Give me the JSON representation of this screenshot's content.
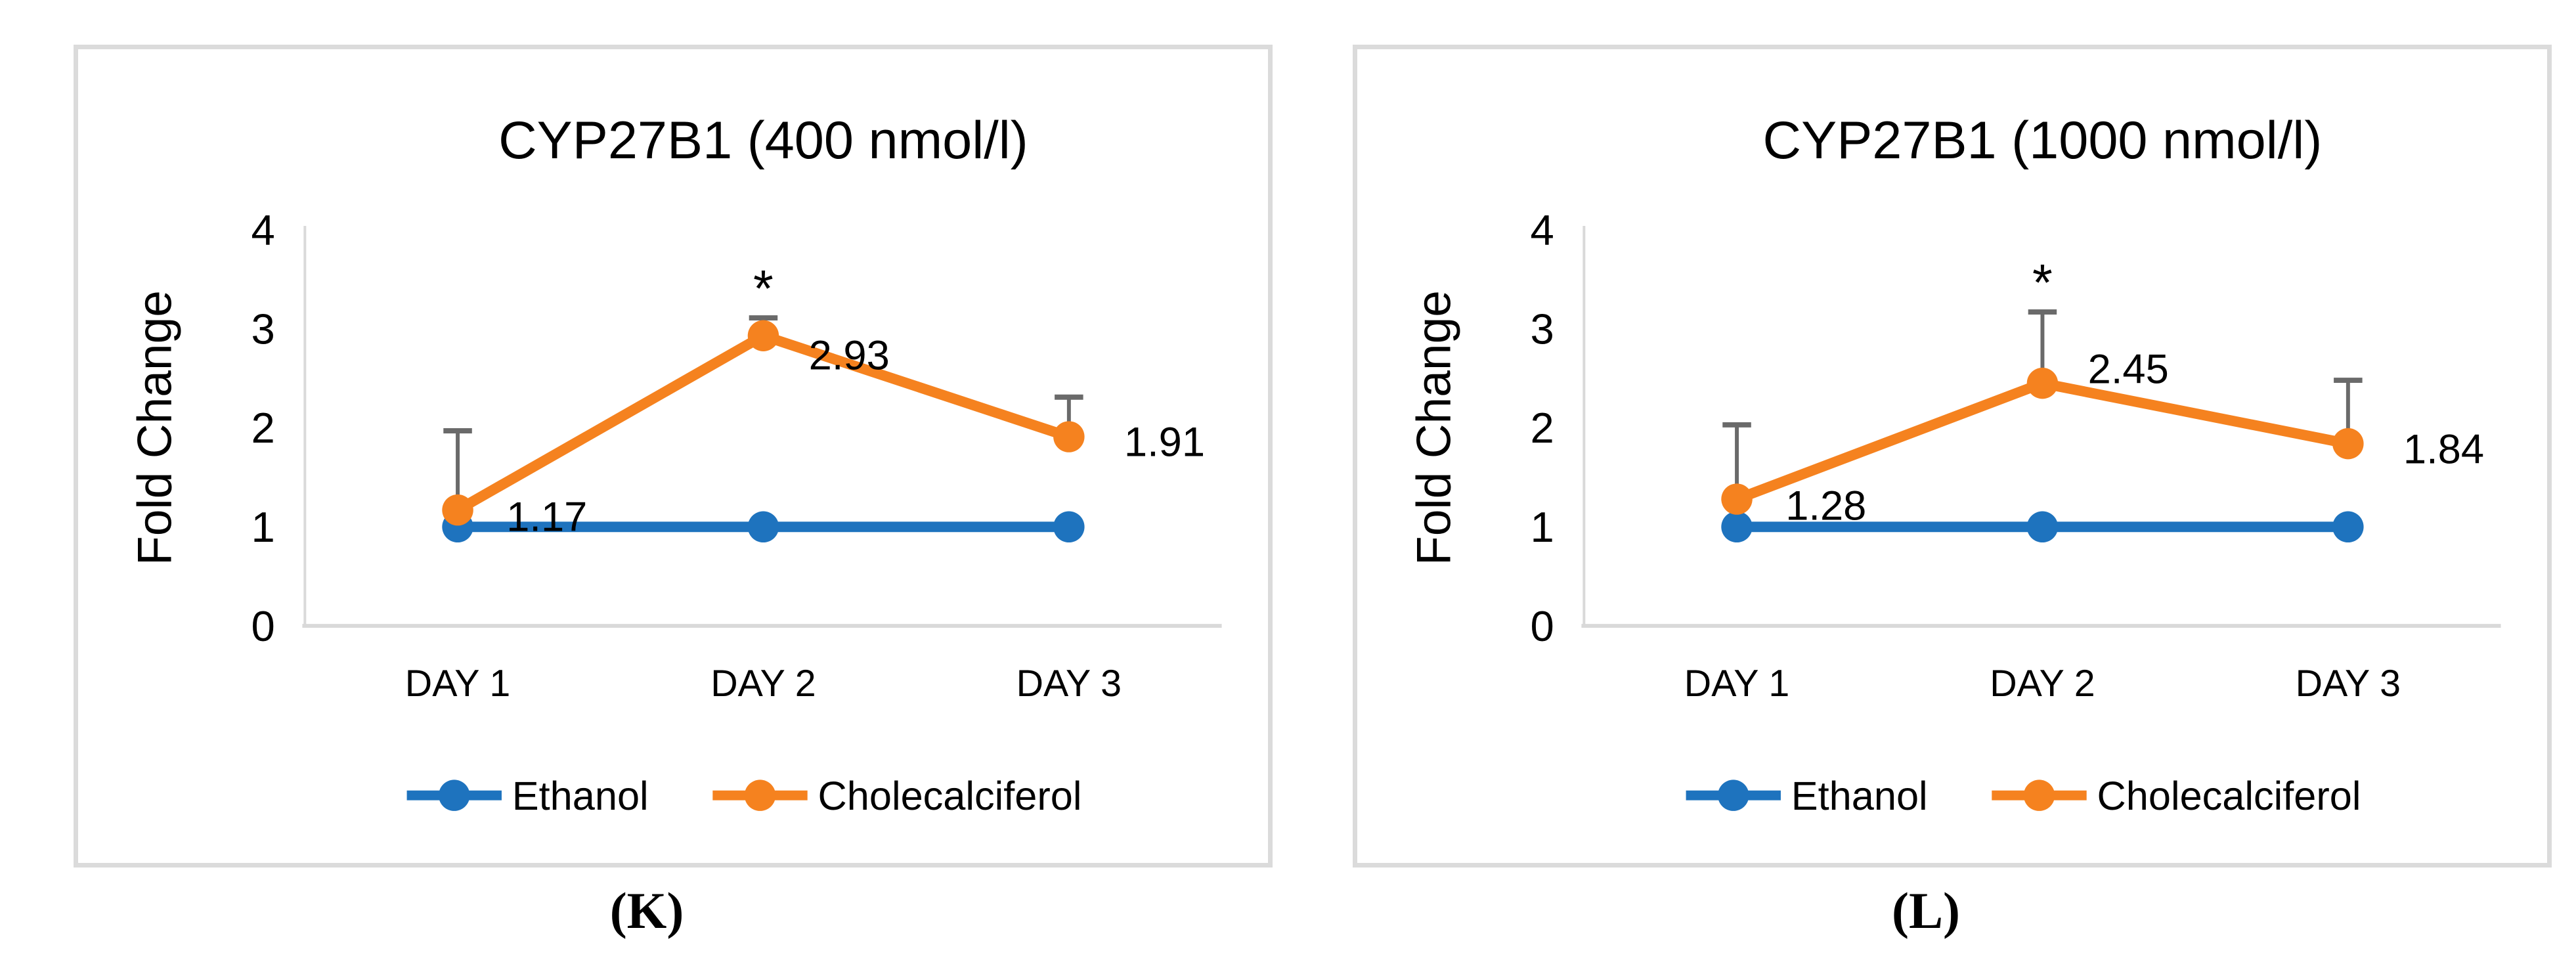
{
  "style": {
    "background": "#FFFFFF",
    "ethanol_color": "#1E73BE",
    "cholecalciferol_color": "#F5821F",
    "error_bar_color": "#6A6A6A",
    "axis_color": "#D9D9D9",
    "panel_border_color": "#DBDBDB",
    "text_color": "#000000"
  },
  "chart_data": [
    {
      "type": "line",
      "title": "CYP27B1 (400 nmol/l)",
      "ylabel": "Fold Change",
      "xlabel": "",
      "categories": [
        "DAY 1",
        "DAY 2",
        "DAY 3"
      ],
      "ylim": [
        0,
        4
      ],
      "yticks": [
        0,
        1,
        2,
        3,
        4
      ],
      "grid": false,
      "legend_position": "bottom",
      "series": [
        {
          "name": "Ethanol",
          "color_key": "ethanol_color",
          "values": [
            1,
            1,
            1
          ]
        },
        {
          "name": "Cholecalciferol",
          "color_key": "cholecalciferol_color",
          "values": [
            1.17,
            2.93,
            1.91
          ],
          "data_labels": [
            "1.17",
            "2.93",
            "1.91"
          ],
          "error_up": [
            0.8,
            0.18,
            0.4
          ],
          "annotations": [
            {
              "category": "DAY 2",
              "text": "*"
            }
          ]
        }
      ],
      "caption": "(K)"
    },
    {
      "type": "line",
      "title": "CYP27B1 (1000 nmol/l)",
      "ylabel": "Fold Change",
      "xlabel": "",
      "categories": [
        "DAY 1",
        "DAY 2",
        "DAY 3"
      ],
      "ylim": [
        0,
        4
      ],
      "yticks": [
        0,
        1,
        2,
        3,
        4
      ],
      "grid": false,
      "legend_position": "bottom",
      "series": [
        {
          "name": "Ethanol",
          "color_key": "ethanol_color",
          "values": [
            1,
            1,
            1
          ]
        },
        {
          "name": "Cholecalciferol",
          "color_key": "cholecalciferol_color",
          "values": [
            1.28,
            2.45,
            1.84
          ],
          "data_labels": [
            "1.28",
            "2.45",
            "1.84"
          ],
          "error_up": [
            0.75,
            0.72,
            0.64
          ],
          "annotations": [
            {
              "category": "DAY 2",
              "text": "*"
            }
          ]
        }
      ],
      "caption": "(L)"
    }
  ]
}
